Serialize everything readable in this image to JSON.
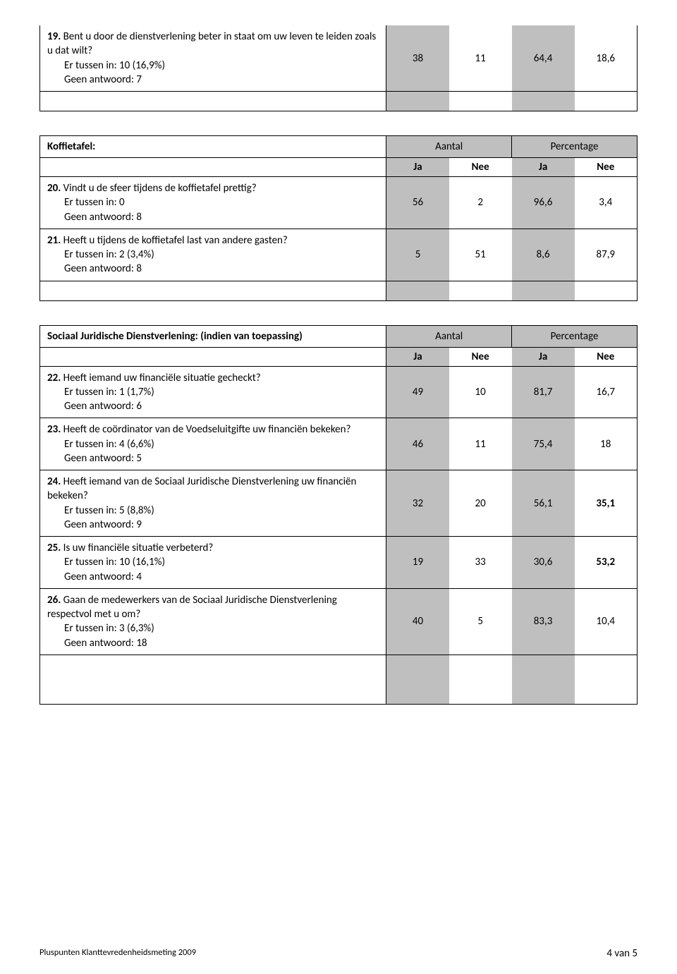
{
  "header": {
    "aantal": "Aantal",
    "percentage": "Percentage",
    "ja": "Ja",
    "nee": "Nee"
  },
  "section_a": {
    "rows": [
      {
        "num": "19.",
        "text": "Bent u door de dienstverlening beter in staat om uw leven te leiden zoals u dat wilt?",
        "line2": "Er tussen in:  10 (16,9%)",
        "line3": "Geen antwoord: 7",
        "vals": [
          "38",
          "11",
          "64,4",
          "18,6"
        ]
      }
    ]
  },
  "section_b": {
    "title": "Koffietafel:",
    "rows": [
      {
        "num": "20.",
        "text": "Vindt u de sfeer tijdens de koffietafel prettig?",
        "line2": "Er tussen in: 0",
        "line3": "Geen antwoord: 8",
        "vals": [
          "56",
          "2",
          "96,6",
          "3,4"
        ]
      },
      {
        "num": "21.",
        "text": "Heeft u  tijdens de koffietafel last van andere gasten?",
        "line2": "Er tussen in: 2 (3,4%)",
        "line3": "Geen antwoord: 8",
        "vals": [
          "5",
          "51",
          "8,6",
          "87,9"
        ]
      }
    ]
  },
  "section_c": {
    "title": "Sociaal Juridische Dienstverlening: (indien van toepassing)",
    "rows": [
      {
        "num": "22.",
        "text": "Heeft iemand uw financiële  situatie gecheckt?",
        "line2": "Er tussen in: 1 (1,7%)",
        "line3": "Geen antwoord: 6",
        "vals": [
          "49",
          "10",
          "81,7",
          "16,7"
        ]
      },
      {
        "num": "23.",
        "text": "Heeft de coördinator van de Voedseluitgifte  uw financiën bekeken?",
        "line2": "Er tussen in: 4 (6,6%)",
        "line3": "Geen antwoord: 5",
        "vals": [
          "46",
          "11",
          "75,4",
          "18"
        ]
      },
      {
        "num": "24.",
        "text": "Heeft iemand van de Sociaal Juridische Dienstverlening uw financiën bekeken?",
        "line2": "Er tussen in: 5 (8,8%)",
        "line3": "Geen antwoord: 9",
        "vals": [
          "32",
          "20",
          "56,1",
          "35,1"
        ]
      },
      {
        "num": "25.",
        "text": "Is uw financiële situatie verbeterd?",
        "line2": "Er tussen in:  10 (16,1%)",
        "line3": "Geen antwoord: 4",
        "vals": [
          "19",
          "33",
          "30,6",
          "53,2"
        ]
      },
      {
        "num": "26.",
        "text": "Gaan de medewerkers van de Sociaal Juridische Dienstverlening respectvol met u om?",
        "line2": "Er tussen in: 3 (6,3%)",
        "line3": "Geen antwoord: 18",
        "vals": [
          "40",
          "5",
          "83,3",
          "10,4"
        ]
      }
    ]
  },
  "bold_vals": [
    "35,1",
    "53,2"
  ],
  "footer": {
    "left": "Pluspunten Klanttevredenheidsmeting 2009",
    "right": "4 van 5"
  },
  "colors": {
    "shade": "#bfbfbf",
    "border": "#000000",
    "bg": "#ffffff"
  }
}
